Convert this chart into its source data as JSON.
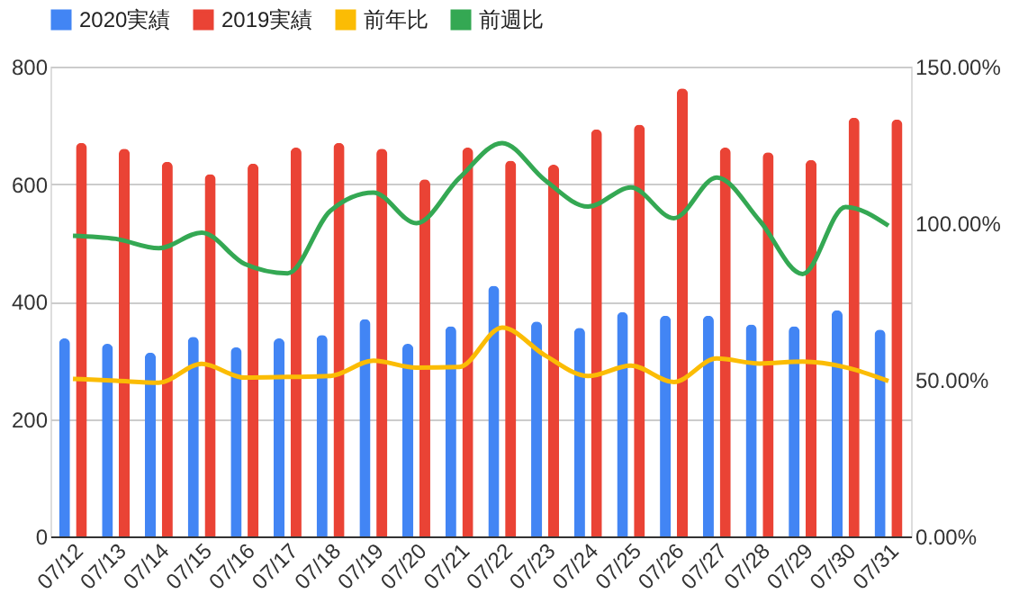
{
  "chart_data": {
    "type": "bar",
    "categories": [
      "07/12",
      "07/13",
      "07/14",
      "07/15",
      "07/16",
      "07/17",
      "07/18",
      "07/19",
      "07/20",
      "07/21",
      "07/22",
      "07/23",
      "07/24",
      "07/25",
      "07/26",
      "07/27",
      "07/28",
      "07/29",
      "07/30",
      "07/31"
    ],
    "series": [
      {
        "name": "2020実績",
        "color": "#4285f4",
        "values": [
          337,
          328,
          313,
          340,
          322,
          337,
          343,
          370,
          328,
          358,
          427,
          366,
          355,
          382,
          376,
          376,
          361,
          358,
          385,
          352
        ]
      },
      {
        "name": "2019実績",
        "color": "#ea4335",
        "values": [
          670,
          660,
          638,
          617,
          635,
          662,
          670,
          660,
          608,
          662,
          640,
          633,
          693,
          701,
          763,
          662,
          654,
          641,
          713,
          710
        ]
      },
      {
        "name": "前年比",
        "type": "line",
        "axis": "y2",
        "color": "#fbbc04",
        "values": [
          50.3,
          49.7,
          49.1,
          55.1,
          50.7,
          50.9,
          51.2,
          56.1,
          53.9,
          54.1,
          66.7,
          57.8,
          51.2,
          54.5,
          49.3,
          56.8,
          55.2,
          55.8,
          54.0,
          49.6
        ]
      },
      {
        "name": "前週比",
        "type": "line",
        "axis": "y2",
        "color": "#34a853",
        "values": [
          96,
          95,
          92,
          97,
          87,
          84,
          104,
          109.8,
          100,
          114.4,
          125.6,
          113.7,
          105.3,
          111.4,
          101.6,
          114.6,
          100.8,
          83.8,
          105.2,
          99.2
        ]
      }
    ],
    "ylim": [
      0,
      800
    ],
    "yticks": [
      0,
      200,
      400,
      600,
      800
    ],
    "y2lim": [
      0,
      150
    ],
    "y2ticks": [
      {
        "value": 0,
        "label": "0.00%"
      },
      {
        "value": 50,
        "label": "50.00%"
      },
      {
        "value": 100,
        "label": "100.00%"
      },
      {
        "value": 150,
        "label": "150.00%"
      }
    ],
    "grid": "y",
    "legend": "top"
  }
}
